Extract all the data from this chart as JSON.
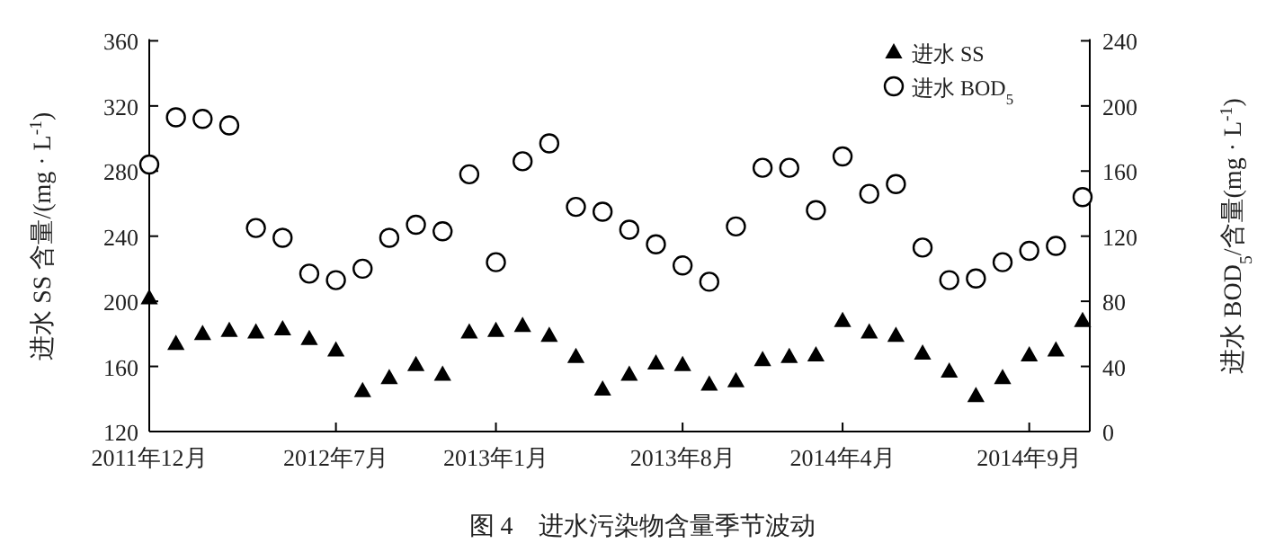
{
  "chart_data": {
    "type": "scatter",
    "title": "图 4　进水污染物含量季节波动",
    "ylabel": "进水 SS 含量/(mg · L$^{-1}$)",
    "y2label": "进水 BOD$_{5}$/含量(mg · L$^{-1}$)",
    "categories": [
      "2011年12月",
      null,
      null,
      null,
      null,
      null,
      null,
      "2012年7月",
      null,
      null,
      null,
      null,
      null,
      "2013年1月",
      null,
      null,
      null,
      null,
      null,
      null,
      "2013年8月",
      null,
      null,
      null,
      null,
      null,
      "2014年4月",
      null,
      null,
      null,
      null,
      null,
      null,
      "2014年9月",
      null,
      null
    ],
    "series": [
      {
        "name": "进水 SS",
        "color": "#000000",
        "marker": "triangle",
        "values": [
          202,
          174,
          180,
          182,
          181,
          183,
          177,
          170,
          145,
          153,
          161,
          155,
          181,
          182,
          185,
          179,
          166,
          146,
          155,
          162,
          161,
          149,
          151,
          164,
          166,
          167,
          188,
          181,
          179,
          168,
          157,
          142,
          153,
          167,
          170,
          188
        ]
      },
      {
        "name": "进水 BOD$_{5}$",
        "color": "#000000",
        "marker": "circle",
        "axis": "y2",
        "values": [
          164,
          193,
          192,
          188,
          125,
          119,
          97,
          93,
          100,
          119,
          127,
          123,
          158,
          104,
          166,
          177,
          138,
          135,
          124,
          115,
          102,
          92,
          126,
          162,
          162,
          136,
          169,
          146,
          152,
          113,
          93,
          94,
          104,
          111,
          114,
          144
        ]
      }
    ],
    "ylim": [
      120,
      360
    ],
    "yticks": [
      120,
      160,
      200,
      240,
      280,
      320,
      360
    ],
    "y2lim": [
      0,
      240
    ],
    "y2ticks": [
      0,
      40,
      80,
      120,
      160,
      200,
      240
    ],
    "legend": "top right",
    "grid": false
  }
}
